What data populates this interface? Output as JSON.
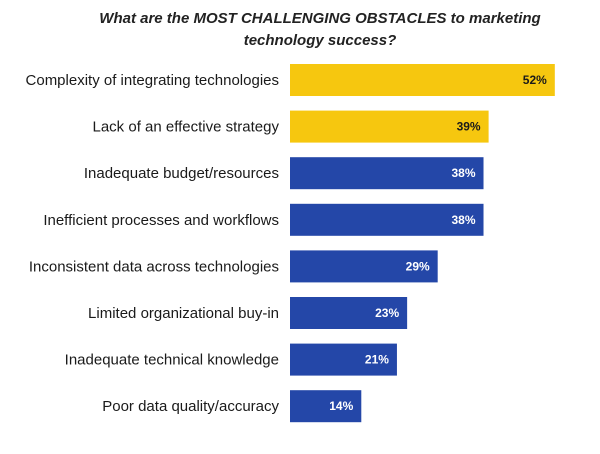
{
  "chart_data": {
    "type": "bar",
    "orientation": "horizontal",
    "title_lines": [
      "What are the MOST CHALLENGING OBSTACLES to marketing",
      "technology success?"
    ],
    "categories": [
      "Complexity of integrating technologies",
      "Lack of an effective strategy",
      "Inadequate budget/resources",
      "Inefficient processes and workflows",
      "Inconsistent data across technologies",
      "Limited organizational buy-in",
      "Inadequate technical knowledge",
      "Poor data quality/accuracy"
    ],
    "values": [
      52,
      39,
      38,
      38,
      29,
      23,
      21,
      14
    ],
    "value_labels": [
      "52%",
      "39%",
      "38%",
      "38%",
      "29%",
      "23%",
      "21%",
      "14%"
    ],
    "xlim": [
      0,
      54
    ],
    "grid": false,
    "bar_colors": [
      "#F6C70F",
      "#F6C70F",
      "#2447A8",
      "#2447A8",
      "#2447A8",
      "#2447A8",
      "#2447A8",
      "#2447A8"
    ],
    "label_colors": [
      "#1a1a1a",
      "#1a1a1a",
      "#ffffff",
      "#ffffff",
      "#ffffff",
      "#ffffff",
      "#ffffff",
      "#ffffff"
    ]
  }
}
